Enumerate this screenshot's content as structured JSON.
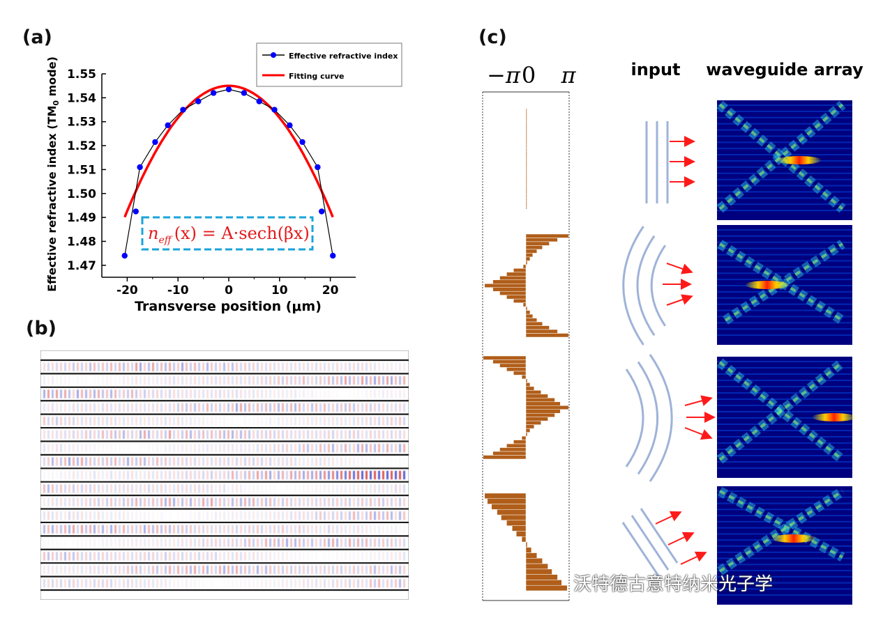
{
  "panels": {
    "a": "(a)",
    "b": "(b)",
    "c": "(c)"
  },
  "chart_data": [
    {
      "id": "a",
      "type": "line",
      "xlabel": "Transverse position (μm)",
      "ylabel": "Effective refractive index (TM",
      "ylabel_sub": "0",
      "ylabel_tail": " mode)",
      "xlim": [
        -25,
        25
      ],
      "ylim": [
        1.465,
        1.55
      ],
      "xticks": [
        -20,
        -10,
        0,
        10,
        20
      ],
      "xtick_labels": [
        "-20",
        "-10",
        "0",
        "10",
        "20"
      ],
      "yticks": [
        1.47,
        1.48,
        1.49,
        1.5,
        1.51,
        1.52,
        1.53,
        1.54,
        1.55
      ],
      "ytick_labels": [
        "1.47",
        "1.48",
        "1.49",
        "1.50",
        "1.51",
        "1.52",
        "1.53",
        "1.54",
        "1.55"
      ],
      "legend_position": "top-right",
      "series": [
        {
          "name": "Effective refractive index",
          "color": "#0000ff",
          "line_color": "#000000",
          "marker": "circle",
          "x": [
            -20.5,
            -17.5,
            -14.5,
            -12,
            -9,
            -6,
            -3,
            0,
            3,
            6,
            9,
            12,
            14.5,
            17.5,
            20.5
          ],
          "y": [
            1.474,
            1.511,
            1.5215,
            1.5285,
            1.535,
            1.5385,
            1.542,
            1.5435,
            1.542,
            1.5385,
            1.535,
            1.5285,
            1.5215,
            1.511,
            1.474
          ]
        },
        {
          "name": "Fitting curve",
          "color": "#ff0000",
          "function": "A·sech(βx)",
          "A": 1.545,
          "beta": 0.0132,
          "x_range": [
            -20.5,
            20.5
          ]
        }
      ],
      "extra_points": [
        {
          "x": -18.3,
          "y": 1.4925
        },
        {
          "x": 18.3,
          "y": 1.4925
        }
      ],
      "annotation": {
        "n": "n",
        "eff": "eff",
        "rest": "(x) = A·sech(βx)",
        "border_color": "#1aa3d9",
        "text_color": "#e31a1c"
      }
    },
    {
      "id": "c",
      "type": "bar",
      "orientation": "horizontal",
      "axis_labels": [
        "−π",
        "0",
        "π"
      ],
      "xlim": [
        -3.1416,
        3.1416
      ],
      "bar_color": "#b05e1a",
      "profiles": [
        {
          "name": "",
          "values": [
            0.04,
            0.04,
            0.04,
            0.04,
            0.04,
            0.04,
            0.04,
            0.04,
            0.04,
            0.04,
            0.04,
            0.04,
            0.04,
            0.04,
            0.04,
            0.04,
            0.04,
            0.04,
            0.04,
            0.04,
            0.04,
            0.04,
            0.04,
            0.04,
            0.04,
            0.04,
            0.04,
            0.04,
            0.04,
            0.04,
            0.04,
            0.04,
            0.04,
            0.04,
            0.04,
            0.04,
            0.04,
            0.04,
            0.04,
            0.04,
            0.04,
            0.04,
            0.04,
            0.04,
            0.04,
            0.04,
            0.04,
            0.04,
            0.04,
            0.04,
            0.04,
            0.04,
            0.04,
            0.04,
            0.04,
            0.04,
            0.04,
            0.04,
            0.04,
            0.04,
            0.04,
            0.04,
            0.04,
            0.04,
            0.04,
            0.04,
            0.04,
            0.04,
            0.04,
            0.04
          ]
        },
        {
          "name": "",
          "values": [
            3.1,
            2.3,
            1.7,
            1.2,
            0.8,
            0.5,
            0.3,
            0.1,
            -0.2,
            -0.9,
            -1.4,
            -1.9,
            -2.4,
            -3.0,
            -2.4,
            -1.9,
            -1.4,
            -0.9,
            -0.2,
            0.1,
            0.3,
            0.5,
            0.8,
            1.2,
            1.7,
            2.3,
            3.1
          ]
        },
        {
          "name": "",
          "values": [
            -3.1,
            -2.4,
            -1.9,
            -1.4,
            -0.9,
            -0.3,
            0.1,
            0.3,
            0.6,
            1.1,
            1.6,
            2.1,
            2.5,
            3.1,
            2.5,
            2.1,
            1.6,
            1.1,
            0.6,
            0.3,
            0.1,
            -0.3,
            -0.9,
            -1.4,
            -1.9,
            -2.4,
            -3.1
          ]
        },
        {
          "name": "",
          "values": [
            -3.0,
            -2.8,
            -2.5,
            -2.1,
            -1.8,
            -1.4,
            -1.0,
            -0.7,
            -0.3,
            0.1,
            0.4,
            0.8,
            1.2,
            1.6,
            1.9,
            2.3,
            2.6,
            3.0
          ]
        }
      ]
    }
  ],
  "labels_c": {
    "input": "input",
    "array": "waveguide array"
  },
  "watermark": "沃特德古意特纳米光子学",
  "colors": {
    "panel_text": "#111111",
    "arrow": "#ff1a1a",
    "wavefront": "#9fb3d8",
    "map_bg": "#00007f"
  }
}
